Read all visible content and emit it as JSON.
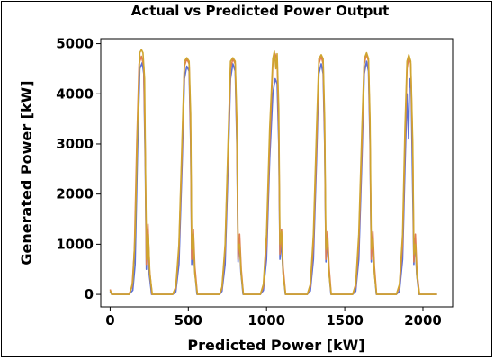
{
  "chart_data": {
    "type": "line",
    "title": "Actual vs Predicted Power Output",
    "xlabel": "Predicted Power [kW]",
    "ylabel": "Generated Power [kW]",
    "xlim": [
      -60,
      2190
    ],
    "ylim": [
      -250,
      5100
    ],
    "x_ticks": [
      0,
      500,
      1000,
      1500,
      2000
    ],
    "y_ticks": [
      0,
      1000,
      2000,
      3000,
      4000,
      5000
    ],
    "grid": false,
    "legend": "none",
    "series": [
      {
        "color": "#5b6fd6",
        "values": [
          [
            0,
            60
          ],
          [
            10,
            0
          ],
          [
            120,
            0
          ],
          [
            145,
            80
          ],
          [
            160,
            600
          ],
          [
            175,
            2800
          ],
          [
            190,
            4500
          ],
          [
            205,
            4620
          ],
          [
            215,
            4400
          ],
          [
            225,
            2500
          ],
          [
            232,
            500
          ],
          [
            240,
            1300
          ],
          [
            250,
            400
          ],
          [
            265,
            0
          ],
          [
            400,
            0
          ],
          [
            420,
            50
          ],
          [
            440,
            600
          ],
          [
            460,
            2600
          ],
          [
            475,
            4300
          ],
          [
            490,
            4550
          ],
          [
            505,
            4450
          ],
          [
            515,
            3000
          ],
          [
            522,
            600
          ],
          [
            530,
            1200
          ],
          [
            540,
            500
          ],
          [
            555,
            0
          ],
          [
            700,
            0
          ],
          [
            715,
            60
          ],
          [
            735,
            600
          ],
          [
            755,
            2600
          ],
          [
            770,
            4300
          ],
          [
            785,
            4600
          ],
          [
            800,
            4450
          ],
          [
            810,
            3000
          ],
          [
            818,
            650
          ],
          [
            826,
            1100
          ],
          [
            836,
            450
          ],
          [
            850,
            0
          ],
          [
            960,
            0
          ],
          [
            980,
            80
          ],
          [
            1000,
            700
          ],
          [
            1020,
            2700
          ],
          [
            1040,
            4000
          ],
          [
            1055,
            4300
          ],
          [
            1068,
            4200
          ],
          [
            1078,
            3000
          ],
          [
            1086,
            700
          ],
          [
            1094,
            1100
          ],
          [
            1104,
            500
          ],
          [
            1120,
            0
          ],
          [
            1260,
            0
          ],
          [
            1280,
            70
          ],
          [
            1300,
            700
          ],
          [
            1320,
            2700
          ],
          [
            1335,
            4400
          ],
          [
            1350,
            4600
          ],
          [
            1362,
            4400
          ],
          [
            1372,
            3000
          ],
          [
            1380,
            650
          ],
          [
            1388,
            1100
          ],
          [
            1398,
            500
          ],
          [
            1412,
            0
          ],
          [
            1550,
            0
          ],
          [
            1570,
            60
          ],
          [
            1590,
            700
          ],
          [
            1610,
            2700
          ],
          [
            1625,
            4400
          ],
          [
            1640,
            4650
          ],
          [
            1652,
            4450
          ],
          [
            1662,
            3000
          ],
          [
            1670,
            650
          ],
          [
            1678,
            1150
          ],
          [
            1688,
            500
          ],
          [
            1702,
            0
          ],
          [
            1830,
            0
          ],
          [
            1850,
            60
          ],
          [
            1870,
            700
          ],
          [
            1885,
            2500
          ],
          [
            1898,
            4000
          ],
          [
            1908,
            3100
          ],
          [
            1915,
            4300
          ],
          [
            1925,
            4100
          ],
          [
            1935,
            2000
          ],
          [
            1942,
            600
          ],
          [
            1950,
            1100
          ],
          [
            1960,
            400
          ],
          [
            1975,
            0
          ],
          [
            2090,
            0
          ]
        ]
      },
      {
        "color": "#e07d52",
        "values": [
          [
            0,
            100
          ],
          [
            10,
            0
          ],
          [
            120,
            0
          ],
          [
            140,
            150
          ],
          [
            155,
            900
          ],
          [
            170,
            3000
          ],
          [
            185,
            4600
          ],
          [
            200,
            4750
          ],
          [
            215,
            4550
          ],
          [
            225,
            2800
          ],
          [
            232,
            600
          ],
          [
            242,
            1400
          ],
          [
            252,
            500
          ],
          [
            268,
            0
          ],
          [
            400,
            0
          ],
          [
            420,
            120
          ],
          [
            440,
            900
          ],
          [
            460,
            2900
          ],
          [
            475,
            4550
          ],
          [
            490,
            4700
          ],
          [
            505,
            4600
          ],
          [
            515,
            3200
          ],
          [
            522,
            700
          ],
          [
            532,
            1300
          ],
          [
            542,
            550
          ],
          [
            558,
            0
          ],
          [
            700,
            0
          ],
          [
            715,
            120
          ],
          [
            735,
            900
          ],
          [
            755,
            2900
          ],
          [
            770,
            4500
          ],
          [
            785,
            4700
          ],
          [
            800,
            4600
          ],
          [
            810,
            3200
          ],
          [
            818,
            700
          ],
          [
            828,
            1200
          ],
          [
            838,
            500
          ],
          [
            852,
            0
          ],
          [
            960,
            0
          ],
          [
            980,
            150
          ],
          [
            1000,
            1000
          ],
          [
            1020,
            3000
          ],
          [
            1040,
            4600
          ],
          [
            1055,
            4800
          ],
          [
            1068,
            4650
          ],
          [
            1078,
            3300
          ],
          [
            1086,
            800
          ],
          [
            1096,
            1300
          ],
          [
            1106,
            550
          ],
          [
            1122,
            0
          ],
          [
            1260,
            0
          ],
          [
            1280,
            150
          ],
          [
            1300,
            1000
          ],
          [
            1320,
            3000
          ],
          [
            1335,
            4600
          ],
          [
            1350,
            4750
          ],
          [
            1362,
            4600
          ],
          [
            1372,
            3200
          ],
          [
            1380,
            700
          ],
          [
            1390,
            1250
          ],
          [
            1400,
            550
          ],
          [
            1414,
            0
          ],
          [
            1550,
            0
          ],
          [
            1570,
            150
          ],
          [
            1590,
            1000
          ],
          [
            1610,
            3000
          ],
          [
            1625,
            4600
          ],
          [
            1640,
            4800
          ],
          [
            1652,
            4650
          ],
          [
            1662,
            3200
          ],
          [
            1670,
            700
          ],
          [
            1680,
            1250
          ],
          [
            1690,
            550
          ],
          [
            1704,
            0
          ],
          [
            1830,
            0
          ],
          [
            1850,
            150
          ],
          [
            1870,
            1000
          ],
          [
            1885,
            3000
          ],
          [
            1898,
            4500
          ],
          [
            1910,
            4750
          ],
          [
            1922,
            4600
          ],
          [
            1935,
            2800
          ],
          [
            1942,
            650
          ],
          [
            1952,
            1200
          ],
          [
            1962,
            450
          ],
          [
            1978,
            0
          ],
          [
            2090,
            0
          ]
        ]
      },
      {
        "color": "#cfa52f",
        "values": [
          [
            0,
            80
          ],
          [
            10,
            0
          ],
          [
            125,
            0
          ],
          [
            145,
            250
          ],
          [
            160,
            1200
          ],
          [
            175,
            3300
          ],
          [
            190,
            4820
          ],
          [
            200,
            4880
          ],
          [
            210,
            4820
          ],
          [
            220,
            4300
          ],
          [
            228,
            2000
          ],
          [
            234,
            700
          ],
          [
            244,
            1200
          ],
          [
            254,
            400
          ],
          [
            270,
            0
          ],
          [
            400,
            0
          ],
          [
            420,
            150
          ],
          [
            440,
            1000
          ],
          [
            460,
            3100
          ],
          [
            475,
            4650
          ],
          [
            490,
            4720
          ],
          [
            505,
            4650
          ],
          [
            515,
            3600
          ],
          [
            522,
            900
          ],
          [
            532,
            1200
          ],
          [
            542,
            400
          ],
          [
            558,
            0
          ],
          [
            700,
            0
          ],
          [
            715,
            150
          ],
          [
            735,
            1000
          ],
          [
            755,
            3100
          ],
          [
            770,
            4650
          ],
          [
            785,
            4720
          ],
          [
            800,
            4650
          ],
          [
            810,
            3500
          ],
          [
            818,
            900
          ],
          [
            828,
            1000
          ],
          [
            838,
            400
          ],
          [
            852,
            0
          ],
          [
            960,
            0
          ],
          [
            980,
            200
          ],
          [
            1000,
            1200
          ],
          [
            1020,
            3300
          ],
          [
            1040,
            4700
          ],
          [
            1050,
            4850
          ],
          [
            1060,
            4500
          ],
          [
            1068,
            4800
          ],
          [
            1078,
            3700
          ],
          [
            1086,
            1000
          ],
          [
            1096,
            1250
          ],
          [
            1106,
            400
          ],
          [
            1122,
            0
          ],
          [
            1260,
            0
          ],
          [
            1280,
            200
          ],
          [
            1300,
            1200
          ],
          [
            1320,
            3300
          ],
          [
            1335,
            4700
          ],
          [
            1350,
            4780
          ],
          [
            1362,
            4700
          ],
          [
            1372,
            3500
          ],
          [
            1380,
            900
          ],
          [
            1390,
            1100
          ],
          [
            1400,
            400
          ],
          [
            1414,
            0
          ],
          [
            1550,
            0
          ],
          [
            1570,
            200
          ],
          [
            1590,
            1200
          ],
          [
            1610,
            3300
          ],
          [
            1625,
            4700
          ],
          [
            1640,
            4820
          ],
          [
            1652,
            4700
          ],
          [
            1662,
            3500
          ],
          [
            1670,
            900
          ],
          [
            1680,
            1100
          ],
          [
            1690,
            400
          ],
          [
            1704,
            0
          ],
          [
            1830,
            0
          ],
          [
            1850,
            200
          ],
          [
            1870,
            1200
          ],
          [
            1885,
            3300
          ],
          [
            1898,
            4650
          ],
          [
            1910,
            4780
          ],
          [
            1922,
            4650
          ],
          [
            1935,
            3000
          ],
          [
            1942,
            800
          ],
          [
            1952,
            1000
          ],
          [
            1962,
            350
          ],
          [
            1978,
            0
          ],
          [
            2090,
            0
          ]
        ]
      }
    ]
  }
}
